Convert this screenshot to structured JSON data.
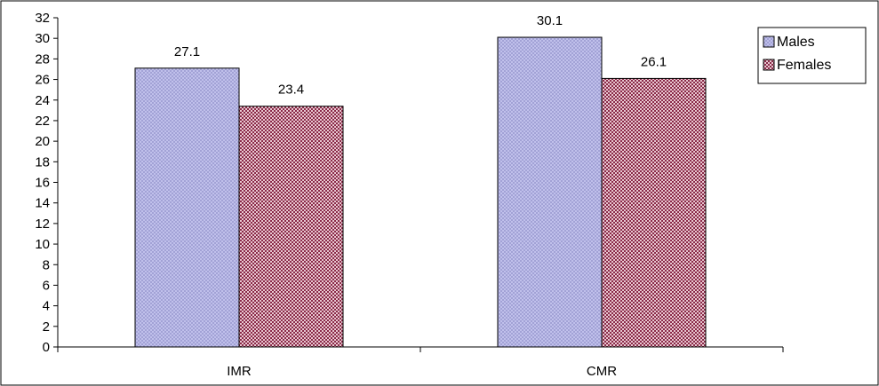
{
  "chart_data": {
    "type": "bar",
    "categories": [
      "IMR",
      "CMR"
    ],
    "series": [
      {
        "name": "Males",
        "values": [
          27.1,
          30.1
        ],
        "color": "#b8b8e6",
        "pattern": "fine-crosshatch"
      },
      {
        "name": "Females",
        "values": [
          23.4,
          26.1
        ],
        "color": "#a0405e",
        "pattern": "checkered"
      }
    ],
    "title": "",
    "xlabel": "",
    "ylabel": "",
    "ylim": [
      0,
      32
    ],
    "yticks": [
      0,
      2,
      4,
      6,
      8,
      10,
      12,
      14,
      16,
      18,
      20,
      22,
      24,
      26,
      28,
      30,
      32
    ],
    "data_labels": [
      "27.1",
      "23.4",
      "30.1",
      "26.1"
    ],
    "grid": false,
    "legend_position": "top-right"
  }
}
